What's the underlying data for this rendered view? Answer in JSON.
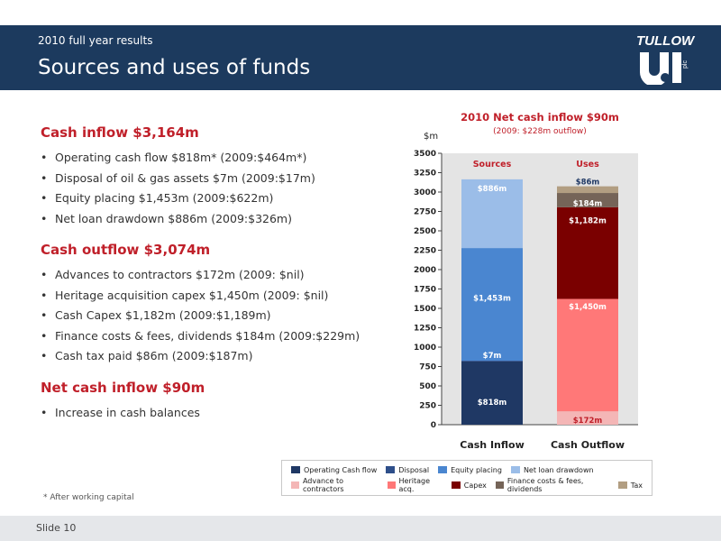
{
  "header": {
    "subtitle": "2010 full year results",
    "title": "Sources and uses of funds",
    "logo_text": "TULLOW",
    "logo_plc": "plc"
  },
  "sections": [
    {
      "heading": "Cash inflow $3,164m",
      "items": [
        "Operating cash flow $818m* (2009:$464m*)",
        "Disposal of oil & gas assets $7m (2009:$17m)",
        "Equity placing $1,453m (2009:$622m)",
        "Net loan drawdown $886m (2009:$326m)"
      ]
    },
    {
      "heading": "Cash outflow $3,074m",
      "items": [
        "Advances to contractors $172m (2009: $nil)",
        "Heritage acquisition capex $1,450m (2009: $nil)",
        "Cash Capex $1,182m (2009:$1,189m)",
        "Finance costs & fees, dividends $184m (2009:$229m)",
        "Cash tax paid $86m (2009:$187m)"
      ]
    },
    {
      "heading": "Net cash inflow $90m",
      "items": [
        "Increase in cash balances"
      ]
    }
  ],
  "footnote": "* After working capital",
  "footer": "Slide 10",
  "colors": {
    "header_bg": "#1c3a5e",
    "accent_red": "#c0202a"
  },
  "chart_data": {
    "type": "bar",
    "stacked": true,
    "title": "2010 Net cash inflow $90m",
    "subtitle": "(2009: $228m outflow)",
    "ylabel": "$m",
    "ylim": [
      0,
      3500
    ],
    "yticks": [
      0,
      250,
      500,
      750,
      1000,
      1250,
      1500,
      1750,
      2000,
      2250,
      2500,
      2750,
      3000,
      3250,
      3500
    ],
    "grid": false,
    "categories": [
      "Cash Inflow",
      "Cash Outflow"
    ],
    "column_headers": [
      "Sources",
      "Uses"
    ],
    "series": [
      {
        "name": "Operating Cash flow",
        "color": "#1f3864",
        "values": [
          818,
          0
        ],
        "labels": [
          "$818m",
          ""
        ]
      },
      {
        "name": "Disposal",
        "color": "#2e4f8a",
        "values": [
          7,
          0
        ],
        "labels": [
          "$7m",
          ""
        ]
      },
      {
        "name": "Equity placing",
        "color": "#4a86d0",
        "values": [
          1453,
          0
        ],
        "labels": [
          "$1,453m",
          ""
        ]
      },
      {
        "name": "Net loan drawdown",
        "color": "#9bbde8",
        "values": [
          886,
          0
        ],
        "labels": [
          "$886m",
          ""
        ]
      },
      {
        "name": "Advance to contractors",
        "color": "#f4b6b6",
        "values": [
          0,
          172
        ],
        "labels": [
          "",
          "$172m"
        ]
      },
      {
        "name": "Heritage acq.",
        "color": "#ff7878",
        "values": [
          0,
          1450
        ],
        "labels": [
          "",
          "$1,450m"
        ]
      },
      {
        "name": "Capex",
        "color": "#7a0000",
        "values": [
          0,
          1182
        ],
        "labels": [
          "",
          "$1,182m"
        ]
      },
      {
        "name": "Finance costs & fees, dividends",
        "color": "#756458",
        "values": [
          0,
          184
        ],
        "labels": [
          "",
          "$184m"
        ]
      },
      {
        "name": "Tax",
        "color": "#b29e82",
        "values": [
          0,
          86
        ],
        "labels": [
          "",
          "$86m"
        ]
      }
    ],
    "legend_position": "bottom"
  }
}
